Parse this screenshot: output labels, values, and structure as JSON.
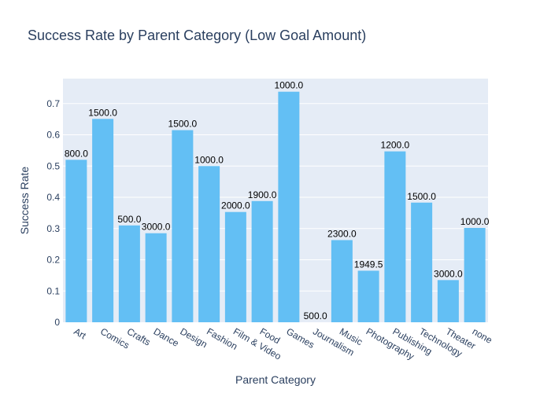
{
  "chart_data": {
    "type": "bar",
    "title": "Success Rate by Parent Category (Low Goal Amount)",
    "xlabel": "Parent Category",
    "ylabel": "Success Rate",
    "ylim": [
      0,
      0.78
    ],
    "yticks": [
      0,
      0.1,
      0.2,
      0.3,
      0.4,
      0.5,
      0.6,
      0.7
    ],
    "ytick_labels": [
      "0",
      "0.1",
      "0.2",
      "0.3",
      "0.4",
      "0.5",
      "0.6",
      "0.7"
    ],
    "grid": true,
    "categories": [
      "Art",
      "Comics",
      "Crafts",
      "Dance",
      "Design",
      "Fashion",
      "Film & Video",
      "Food",
      "Games",
      "Journalism",
      "Music",
      "Photography",
      "Publishing",
      "Technology",
      "Theater",
      "none"
    ],
    "values": [
      0.52,
      0.651,
      0.31,
      0.285,
      0.615,
      0.5,
      0.353,
      0.388,
      0.738,
      0.0,
      0.263,
      0.165,
      0.547,
      0.383,
      0.135,
      0.302
    ],
    "labels": [
      "800.0",
      "1500.0",
      "500.0",
      "3000.0",
      "1500.0",
      "1000.0",
      "2000.0",
      "1900.0",
      "1000.0",
      "500.0",
      "2300.0",
      "1949.5",
      "1200.0",
      "1500.0",
      "3000.0",
      "1000.0"
    ],
    "colors": {
      "bar": "#63bff4",
      "plot_bg": "#e5ecf6",
      "grid": "#ffffff",
      "text": "#2a3f5f"
    }
  }
}
